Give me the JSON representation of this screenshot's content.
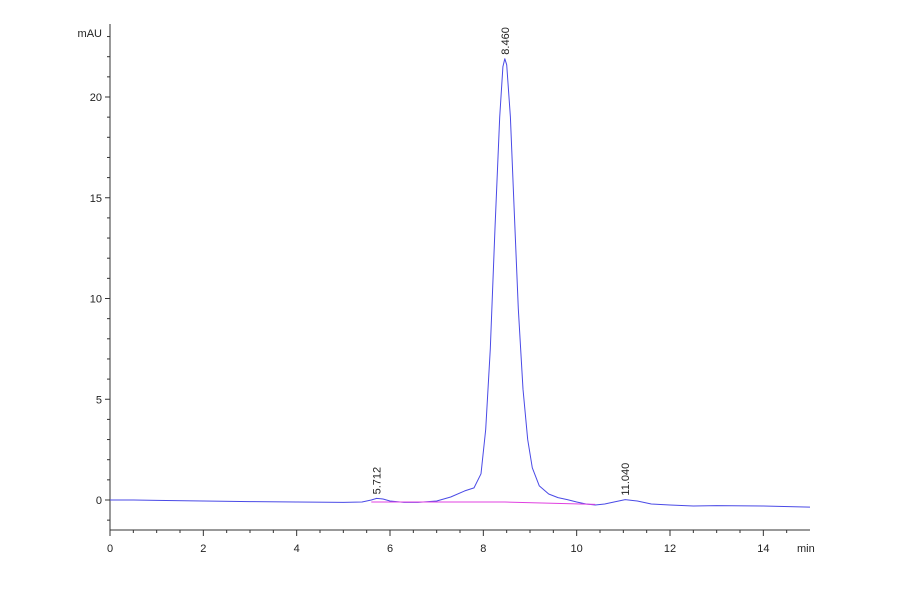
{
  "chart_data": {
    "type": "line",
    "ylabel": "mAU",
    "xlabel": "min",
    "xlim": [
      0,
      15
    ],
    "ylim": [
      -1.5,
      23.6
    ],
    "x_ticks": [
      0,
      2,
      4,
      6,
      8,
      10,
      12,
      14
    ],
    "y_ticks": [
      0,
      5,
      10,
      15,
      20
    ],
    "colors": {
      "signal": "#4a4ae6",
      "baseline": "#e040e0",
      "axis": "#333333"
    },
    "series": [
      {
        "type": "signal",
        "x": [
          0,
          0.5,
          1,
          2,
          3,
          4,
          5,
          5.4,
          5.6,
          5.712,
          5.85,
          6.0,
          6.3,
          6.6,
          7.0,
          7.3,
          7.6,
          7.8,
          7.95,
          8.05,
          8.15,
          8.25,
          8.35,
          8.42,
          8.46,
          8.5,
          8.58,
          8.66,
          8.75,
          8.85,
          8.95,
          9.05,
          9.2,
          9.4,
          9.6,
          9.8,
          10.0,
          10.2,
          10.4,
          10.6,
          10.8,
          11.04,
          11.3,
          11.6,
          12.0,
          12.5,
          13.0,
          14.0,
          15.0
        ],
        "y": [
          0.0,
          0.0,
          -0.02,
          -0.05,
          -0.08,
          -0.1,
          -0.12,
          -0.1,
          0.0,
          0.08,
          0.05,
          -0.05,
          -0.12,
          -0.12,
          -0.05,
          0.15,
          0.45,
          0.6,
          1.3,
          3.5,
          7.5,
          13.5,
          19.0,
          21.5,
          21.9,
          21.6,
          19.0,
          14.5,
          9.5,
          5.5,
          3.0,
          1.6,
          0.7,
          0.3,
          0.12,
          0.02,
          -0.1,
          -0.2,
          -0.25,
          -0.2,
          -0.1,
          0.02,
          -0.05,
          -0.2,
          -0.25,
          -0.3,
          -0.28,
          -0.3,
          -0.35
        ]
      },
      {
        "type": "baseline",
        "x": [
          5.6,
          8.46,
          10.4
        ],
        "y": [
          -0.1,
          -0.1,
          -0.22
        ]
      }
    ],
    "annotations": [
      {
        "x": 5.712,
        "y": 0.08,
        "label": "5.712"
      },
      {
        "x": 8.46,
        "y": 21.9,
        "label": "8.460"
      },
      {
        "x": 11.04,
        "y": 0.02,
        "label": "11.040"
      }
    ]
  }
}
